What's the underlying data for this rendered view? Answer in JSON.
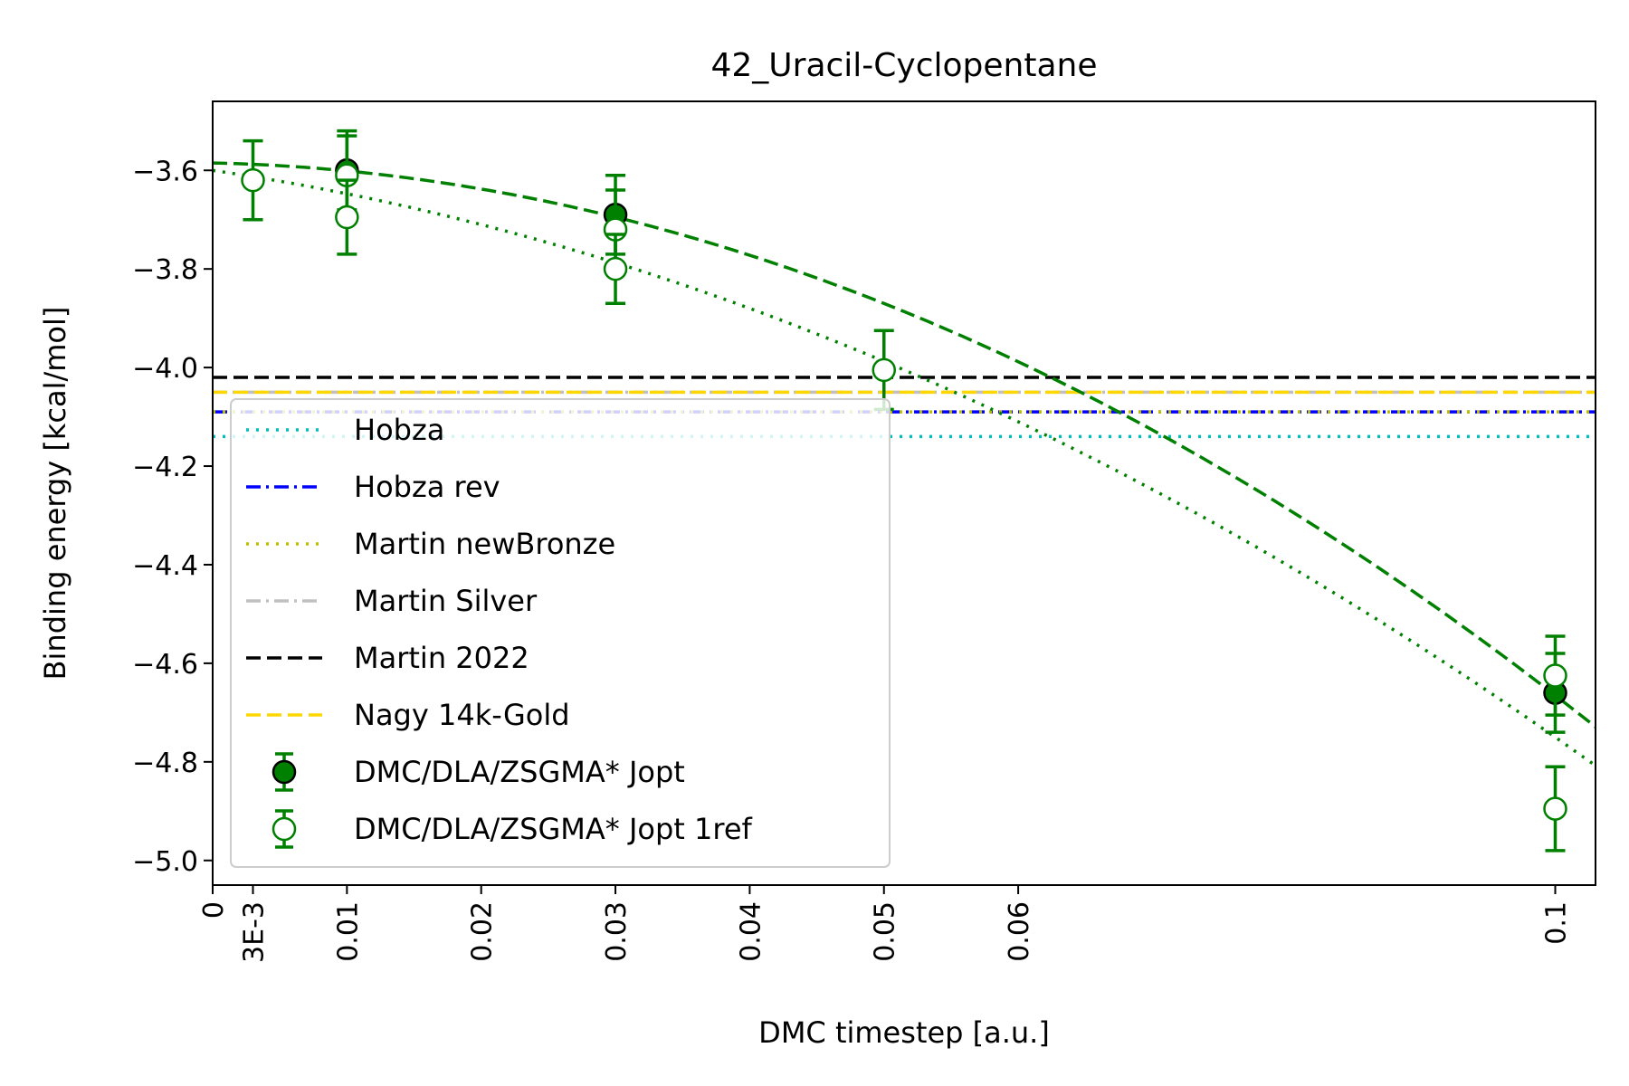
{
  "chart_data": {
    "type": "scatter",
    "title": "42_Uracil-Cyclopentane",
    "xlabel": "DMC timestep [a.u.]",
    "ylabel": "Binding energy [kcal/mol]",
    "xlim": [
      0,
      0.103
    ],
    "ylim": [
      -5.05,
      -3.46
    ],
    "x_ticks": [
      {
        "value": 0,
        "label": "0"
      },
      {
        "value": 0.003,
        "label": "3E-3"
      },
      {
        "value": 0.01,
        "label": "0.01"
      },
      {
        "value": 0.02,
        "label": "0.02"
      },
      {
        "value": 0.03,
        "label": "0.03"
      },
      {
        "value": 0.04,
        "label": "0.04"
      },
      {
        "value": 0.05,
        "label": "0.05"
      },
      {
        "value": 0.06,
        "label": "0.06"
      },
      {
        "value": 0.1,
        "label": "0.1"
      }
    ],
    "y_ticks": [
      {
        "value": -3.6,
        "label": "−3.6"
      },
      {
        "value": -3.8,
        "label": "−3.8"
      },
      {
        "value": -4.0,
        "label": "−4.0"
      },
      {
        "value": -4.2,
        "label": "−4.2"
      },
      {
        "value": -4.4,
        "label": "−4.4"
      },
      {
        "value": -4.6,
        "label": "−4.6"
      },
      {
        "value": -4.8,
        "label": "−4.8"
      },
      {
        "value": -5.0,
        "label": "−5.0"
      }
    ],
    "grid": false,
    "legend_position": "lower-left",
    "reference_lines": [
      {
        "name": "Hobza",
        "y": -4.14,
        "color": "#00bfbf",
        "dash": "dotted"
      },
      {
        "name": "Hobza rev",
        "y": -4.09,
        "color": "#0000ff",
        "dash": "dashdot"
      },
      {
        "name": "Martin newBronze",
        "y": -4.09,
        "color": "#bfbf00",
        "dash": "dotted"
      },
      {
        "name": "Martin Silver",
        "y": -4.05,
        "color": "#c0c0c0",
        "dash": "dashdot"
      },
      {
        "name": "Martin 2022",
        "y": -4.02,
        "color": "#000000",
        "dash": "dashed"
      },
      {
        "name": "Nagy 14k-Gold",
        "y": -4.05,
        "color": "#ffd700",
        "dash": "dashed"
      }
    ],
    "series": [
      {
        "name": "DMC/DLA/ZSGMA* Jopt",
        "marker": "filled",
        "color": "#008000",
        "points": [
          {
            "x": 0.01,
            "y": -3.6,
            "err": 0.08
          },
          {
            "x": 0.03,
            "y": -3.69,
            "err": 0.08
          },
          {
            "x": 0.1,
            "y": -4.66,
            "err": 0.08
          }
        ],
        "fit": {
          "a": -3.585,
          "b": -0.6,
          "c": -102.0,
          "dash": "dashed"
        }
      },
      {
        "name": "DMC/DLA/ZSGMA* Jopt 1ref",
        "marker": "open",
        "color": "#008000",
        "points": [
          {
            "x": 0.003,
            "y": -3.62,
            "err": 0.08
          },
          {
            "x": 0.01,
            "y": -3.61,
            "err": 0.08
          },
          {
            "x": 0.01,
            "y": -3.695,
            "err": 0.075
          },
          {
            "x": 0.03,
            "y": -3.72,
            "err": 0.08
          },
          {
            "x": 0.03,
            "y": -3.8,
            "err": 0.07
          },
          {
            "x": 0.05,
            "y": -4.005,
            "err": 0.08
          },
          {
            "x": 0.1,
            "y": -4.625,
            "err": 0.08
          },
          {
            "x": 0.1,
            "y": -4.895,
            "err": 0.085
          }
        ],
        "fit": {
          "a": -3.6,
          "b": -4.0,
          "c": -75.0,
          "dash": "dotted"
        }
      }
    ]
  }
}
